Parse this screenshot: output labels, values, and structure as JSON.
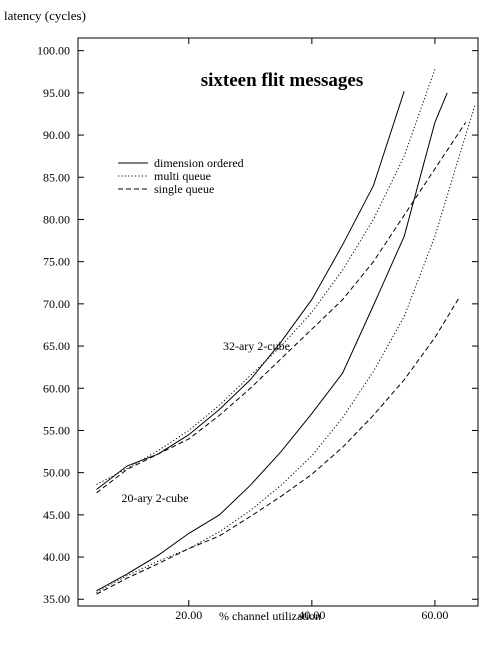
{
  "chart_data": {
    "type": "line",
    "title": "sixteen flit messages",
    "xlabel": "% channel utilization",
    "ylabel": "latency (cycles)",
    "xlim": [
      2.0,
      67.0
    ],
    "ylim": [
      34.2,
      101.5
    ],
    "x_ticks": [
      20,
      40,
      60
    ],
    "y_ticks": [
      35,
      40,
      45,
      50,
      55,
      60,
      65,
      70,
      75,
      80,
      85,
      90,
      95,
      100
    ],
    "grid": false,
    "legend_position": "upper-left",
    "legend": [
      {
        "label": "dimension ordered",
        "dash": "solid"
      },
      {
        "label": "multi queue",
        "dash": "dotted"
      },
      {
        "label": "single queue",
        "dash": "dashed"
      }
    ],
    "annotations": [
      {
        "text": "32-ary 2-cube",
        "x": 31.0,
        "y": 65.0
      },
      {
        "text": "20-ary 2-cube",
        "x": 14.5,
        "y": 47.0
      }
    ],
    "series": [
      {
        "dash": "solid",
        "group": "32-ary 2-cube",
        "points": [
          [
            5,
            48.0
          ],
          [
            10,
            50.8
          ],
          [
            15,
            52.2
          ],
          [
            20,
            54.5
          ],
          [
            25,
            57.5
          ],
          [
            30,
            61.0
          ],
          [
            35,
            65.5
          ],
          [
            40,
            70.5
          ],
          [
            45,
            77.0
          ],
          [
            50,
            84.0
          ],
          [
            55,
            95.2
          ]
        ]
      },
      {
        "dash": "dotted",
        "group": "32-ary 2-cube",
        "points": [
          [
            5,
            48.6
          ],
          [
            10,
            50.5
          ],
          [
            15,
            52.6
          ],
          [
            20,
            55.0
          ],
          [
            25,
            58.0
          ],
          [
            30,
            61.5
          ],
          [
            35,
            65.0
          ],
          [
            40,
            69.0
          ],
          [
            45,
            74.0
          ],
          [
            50,
            80.0
          ],
          [
            55,
            87.5
          ],
          [
            60,
            97.8
          ]
        ]
      },
      {
        "dash": "dashed",
        "group": "32-ary 2-cube",
        "points": [
          [
            5,
            47.6
          ],
          [
            10,
            50.4
          ],
          [
            15,
            52.2
          ],
          [
            20,
            54.0
          ],
          [
            25,
            56.8
          ],
          [
            30,
            60.0
          ],
          [
            35,
            63.5
          ],
          [
            40,
            67.0
          ],
          [
            45,
            70.5
          ],
          [
            50,
            75.0
          ],
          [
            55,
            80.5
          ],
          [
            60,
            86.0
          ],
          [
            65,
            91.5
          ]
        ]
      },
      {
        "dash": "solid",
        "group": "20-ary 2-cube",
        "points": [
          [
            5,
            36.0
          ],
          [
            10,
            38.0
          ],
          [
            15,
            40.2
          ],
          [
            20,
            42.8
          ],
          [
            25,
            45.0
          ],
          [
            30,
            48.5
          ],
          [
            35,
            52.5
          ],
          [
            40,
            57.0
          ],
          [
            45,
            61.8
          ],
          [
            50,
            69.8
          ],
          [
            55,
            78.0
          ],
          [
            60,
            91.5
          ],
          [
            62,
            95.0
          ]
        ]
      },
      {
        "dash": "dotted",
        "group": "20-ary 2-cube",
        "points": [
          [
            5,
            35.8
          ],
          [
            10,
            37.8
          ],
          [
            15,
            39.5
          ],
          [
            20,
            41.0
          ],
          [
            25,
            43.0
          ],
          [
            30,
            45.5
          ],
          [
            35,
            48.5
          ],
          [
            40,
            52.0
          ],
          [
            45,
            56.5
          ],
          [
            50,
            62.0
          ],
          [
            55,
            68.5
          ],
          [
            60,
            78.0
          ],
          [
            65,
            90.0
          ],
          [
            66.5,
            93.5
          ]
        ]
      },
      {
        "dash": "dashed",
        "group": "20-ary 2-cube",
        "points": [
          [
            5,
            35.6
          ],
          [
            10,
            37.5
          ],
          [
            15,
            39.2
          ],
          [
            20,
            41.0
          ],
          [
            25,
            42.5
          ],
          [
            30,
            44.8
          ],
          [
            35,
            47.2
          ],
          [
            40,
            49.8
          ],
          [
            45,
            53.0
          ],
          [
            50,
            56.8
          ],
          [
            55,
            61.0
          ],
          [
            60,
            66.0
          ],
          [
            64,
            70.8
          ]
        ]
      }
    ]
  }
}
